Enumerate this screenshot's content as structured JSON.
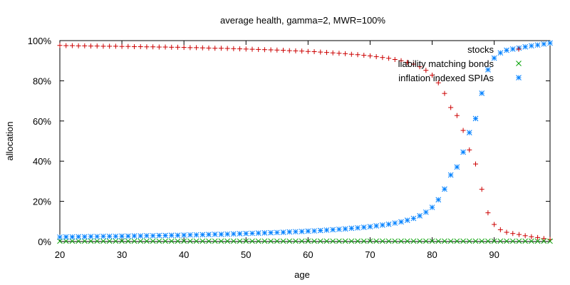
{
  "chart_data": {
    "type": "scatter",
    "title": "average health, gamma=2, MWR=100%",
    "xlabel": "age",
    "ylabel": "allocation",
    "xlim": [
      20,
      99
    ],
    "ylim": [
      0,
      1
    ],
    "x_ticks": [
      20,
      30,
      40,
      50,
      60,
      70,
      80,
      90
    ],
    "x_tick_labels": [
      "20",
      "30",
      "40",
      "50",
      "60",
      "70",
      "80",
      "90"
    ],
    "y_ticks": [
      0,
      0.2,
      0.4,
      0.6,
      0.8,
      1.0
    ],
    "y_tick_labels": [
      "0%",
      "20%",
      "40%",
      "60%",
      "80%",
      "100%"
    ],
    "grid": false,
    "legend_position": "top-right",
    "x": [
      20,
      21,
      22,
      23,
      24,
      25,
      26,
      27,
      28,
      29,
      30,
      31,
      32,
      33,
      34,
      35,
      36,
      37,
      38,
      39,
      40,
      41,
      42,
      43,
      44,
      45,
      46,
      47,
      48,
      49,
      50,
      51,
      52,
      53,
      54,
      55,
      56,
      57,
      58,
      59,
      60,
      61,
      62,
      63,
      64,
      65,
      66,
      67,
      68,
      69,
      70,
      71,
      72,
      73,
      74,
      75,
      76,
      77,
      78,
      79,
      80,
      81,
      82,
      83,
      84,
      85,
      86,
      87,
      88,
      89,
      90,
      91,
      92,
      93,
      94,
      95,
      96,
      97,
      98,
      99
    ],
    "series": [
      {
        "name": "stocks",
        "marker": "plus",
        "color": "#cc0000",
        "values": [
          0.976,
          0.975,
          0.975,
          0.974,
          0.974,
          0.973,
          0.973,
          0.972,
          0.972,
          0.972,
          0.971,
          0.971,
          0.97,
          0.97,
          0.969,
          0.969,
          0.968,
          0.968,
          0.967,
          0.967,
          0.966,
          0.965,
          0.965,
          0.964,
          0.963,
          0.962,
          0.962,
          0.961,
          0.96,
          0.959,
          0.958,
          0.957,
          0.956,
          0.955,
          0.954,
          0.953,
          0.952,
          0.95,
          0.949,
          0.948,
          0.946,
          0.945,
          0.943,
          0.941,
          0.939,
          0.937,
          0.935,
          0.932,
          0.93,
          0.927,
          0.924,
          0.92,
          0.916,
          0.912,
          0.906,
          0.9,
          0.892,
          0.883,
          0.87,
          0.852,
          0.828,
          0.79,
          0.737,
          0.667,
          0.627,
          0.553,
          0.456,
          0.386,
          0.26,
          0.143,
          0.085,
          0.059,
          0.046,
          0.04,
          0.035,
          0.029,
          0.024,
          0.02,
          0.015,
          0.01
        ]
      },
      {
        "name": "liability matching bonds",
        "marker": "cross",
        "color": "#00a000",
        "values": [
          0.002,
          0.002,
          0.002,
          0.002,
          0.002,
          0.002,
          0.002,
          0.002,
          0.002,
          0.002,
          0.002,
          0.002,
          0.002,
          0.002,
          0.002,
          0.002,
          0.002,
          0.002,
          0.002,
          0.002,
          0.002,
          0.002,
          0.002,
          0.002,
          0.002,
          0.002,
          0.002,
          0.002,
          0.002,
          0.002,
          0.002,
          0.002,
          0.002,
          0.002,
          0.002,
          0.002,
          0.002,
          0.002,
          0.002,
          0.002,
          0.002,
          0.002,
          0.002,
          0.002,
          0.002,
          0.002,
          0.002,
          0.002,
          0.002,
          0.002,
          0.002,
          0.002,
          0.002,
          0.002,
          0.002,
          0.002,
          0.002,
          0.002,
          0.002,
          0.002,
          0.002,
          0.002,
          0.002,
          0.002,
          0.002,
          0.002,
          0.002,
          0.002,
          0.002,
          0.002,
          0.002,
          0.002,
          0.002,
          0.002,
          0.002,
          0.002,
          0.002,
          0.002,
          0.002,
          0.002
        ]
      },
      {
        "name": "inflation indexed SPIAs",
        "marker": "star",
        "color": "#0080ff",
        "values": [
          0.022,
          0.023,
          0.023,
          0.024,
          0.024,
          0.025,
          0.025,
          0.026,
          0.026,
          0.026,
          0.027,
          0.027,
          0.028,
          0.028,
          0.029,
          0.029,
          0.03,
          0.03,
          0.031,
          0.031,
          0.032,
          0.033,
          0.033,
          0.034,
          0.035,
          0.036,
          0.036,
          0.037,
          0.038,
          0.039,
          0.04,
          0.041,
          0.042,
          0.043,
          0.044,
          0.045,
          0.046,
          0.048,
          0.049,
          0.05,
          0.052,
          0.053,
          0.055,
          0.057,
          0.059,
          0.061,
          0.063,
          0.066,
          0.068,
          0.071,
          0.074,
          0.078,
          0.082,
          0.086,
          0.092,
          0.098,
          0.106,
          0.115,
          0.128,
          0.146,
          0.17,
          0.208,
          0.261,
          0.331,
          0.371,
          0.445,
          0.542,
          0.612,
          0.738,
          0.855,
          0.913,
          0.939,
          0.952,
          0.958,
          0.963,
          0.969,
          0.974,
          0.978,
          0.983,
          0.988
        ]
      }
    ]
  }
}
